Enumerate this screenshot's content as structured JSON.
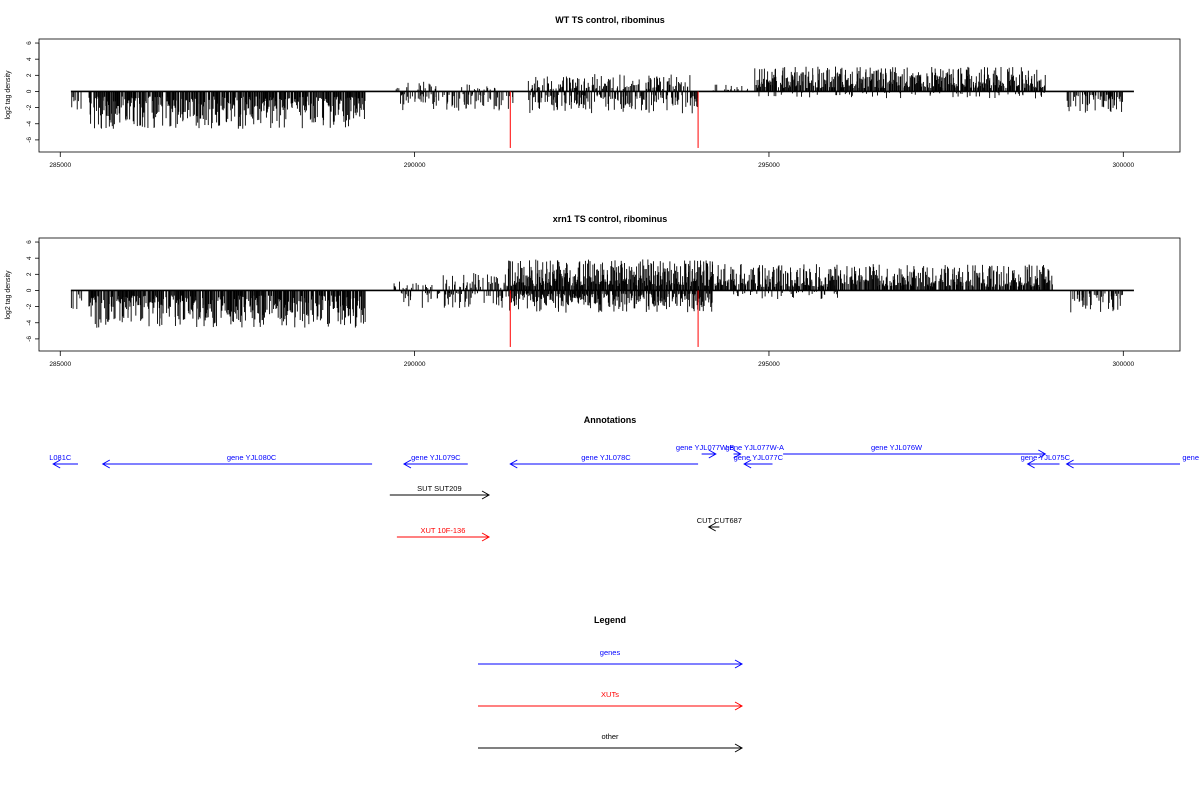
{
  "chart_data": [
    {
      "type": "bar",
      "title": "WT TS control, ribominus",
      "ylabel": "log2 tag density",
      "xlabel": "",
      "xlim": [
        284700,
        300800
      ],
      "ylim": [
        -7.5,
        6.5
      ],
      "x_ticks": [
        285000,
        290000,
        295000,
        300000
      ],
      "x_tick_labels": [
        "285000",
        "290000",
        "295000",
        "300000"
      ],
      "y_ticks": [
        -6,
        -4,
        -2,
        0,
        2,
        4,
        6
      ],
      "y_tick_labels": [
        "-6",
        "-4",
        "-2",
        "0",
        "2",
        "4",
        "6"
      ],
      "baseline_range": [
        285150,
        300150
      ],
      "red_markers": [
        {
          "x": 291350,
          "y": -7.0
        },
        {
          "x": 294000,
          "y": -7.0
        }
      ],
      "segments": [
        {
          "from": 285150,
          "to": 285300,
          "y": -2.5,
          "density": 0.3
        },
        {
          "from": 285400,
          "to": 289300,
          "y": -4.2,
          "density": 0.85
        },
        {
          "from": 289700,
          "to": 290300,
          "y": 1.2,
          "density": 0.25
        },
        {
          "from": 289800,
          "to": 291400,
          "y": -2.2,
          "density": 0.45
        },
        {
          "from": 290600,
          "to": 291200,
          "y": 0.8,
          "density": 0.2
        },
        {
          "from": 291600,
          "to": 293900,
          "y": 2.0,
          "density": 0.5
        },
        {
          "from": 291600,
          "to": 294000,
          "y": -2.5,
          "density": 0.55
        },
        {
          "from": 294200,
          "to": 294700,
          "y": 0.8,
          "density": 0.2
        },
        {
          "from": 294800,
          "to": 298900,
          "y": 2.8,
          "density": 0.85
        },
        {
          "from": 294800,
          "to": 298900,
          "y": -0.8,
          "density": 0.15
        },
        {
          "from": 299200,
          "to": 300000,
          "y": -2.5,
          "density": 0.45
        }
      ]
    },
    {
      "type": "bar",
      "title": "xrn1 TS control, ribominus",
      "ylabel": "log2 tag density",
      "xlabel": "",
      "xlim": [
        284700,
        300800
      ],
      "ylim": [
        -7.5,
        6.5
      ],
      "x_ticks": [
        285000,
        290000,
        295000,
        300000
      ],
      "x_tick_labels": [
        "285000",
        "290000",
        "295000",
        "300000"
      ],
      "y_ticks": [
        -6,
        -4,
        -2,
        0,
        2,
        4,
        6
      ],
      "y_tick_labels": [
        "-6",
        "-4",
        "-2",
        "0",
        "2",
        "4",
        "6"
      ],
      "baseline_range": [
        285150,
        300150
      ],
      "red_markers": [
        {
          "x": 291350,
          "y": -7.0
        },
        {
          "x": 294000,
          "y": -7.0
        }
      ],
      "segments": [
        {
          "from": 285150,
          "to": 285300,
          "y": -2.5,
          "density": 0.3
        },
        {
          "from": 285400,
          "to": 289300,
          "y": -4.2,
          "density": 0.85
        },
        {
          "from": 289700,
          "to": 290300,
          "y": 1.0,
          "density": 0.25
        },
        {
          "from": 289800,
          "to": 291300,
          "y": -2.0,
          "density": 0.45
        },
        {
          "from": 290400,
          "to": 291300,
          "y": 2.0,
          "density": 0.35
        },
        {
          "from": 291300,
          "to": 294200,
          "y": 3.5,
          "density": 0.95
        },
        {
          "from": 291300,
          "to": 294200,
          "y": -2.5,
          "density": 0.85
        },
        {
          "from": 294200,
          "to": 299000,
          "y": 3.0,
          "density": 0.85
        },
        {
          "from": 294500,
          "to": 296000,
          "y": -1.0,
          "density": 0.2
        },
        {
          "from": 299200,
          "to": 300000,
          "y": -2.5,
          "density": 0.45
        }
      ]
    }
  ],
  "annotations_panel": {
    "title": "Annotations",
    "xlim": [
      284700,
      300800
    ],
    "rows": [
      {
        "label": "L081C",
        "from": 285250,
        "to": 284900,
        "row": 0,
        "color": "#0000ff",
        "label_x": 285000,
        "label_side": "above"
      },
      {
        "label": "gene YJL080C",
        "from": 289400,
        "to": 285600,
        "row": 0,
        "color": "#0000ff",
        "label_x": 287700,
        "label_side": "above"
      },
      {
        "label": "gene YJL079C",
        "from": 290750,
        "to": 289850,
        "row": 0,
        "color": "#0000ff",
        "label_x": 290300,
        "label_side": "above"
      },
      {
        "label": "gene YJL078C",
        "from": 294000,
        "to": 291350,
        "row": 0,
        "color": "#0000ff",
        "label_x": 292700,
        "label_side": "above"
      },
      {
        "label": "gene YJL077W-B",
        "from": 294050,
        "to": 294250,
        "row": -1,
        "color": "#0000ff",
        "label_x": 294100,
        "label_side": "above"
      },
      {
        "label": "gene YJL077W-A",
        "from": 294500,
        "to": 294600,
        "row": -1,
        "color": "#0000ff",
        "label_x": 294800,
        "label_side": "above"
      },
      {
        "label": "gene YJL077C",
        "from": 295050,
        "to": 294650,
        "row": 0,
        "color": "#0000ff",
        "label_x": 294850,
        "label_side": "above"
      },
      {
        "label": "gene YJL076W",
        "from": 295200,
        "to": 298900,
        "row": -1,
        "color": "#0000ff",
        "label_x": 296800,
        "label_side": "above"
      },
      {
        "label": "gene YJL075C",
        "from": 299100,
        "to": 298650,
        "row": 0,
        "color": "#0000ff",
        "label_x": 298900,
        "label_side": "above"
      },
      {
        "label": "gene",
        "from": 300800,
        "to": 299200,
        "row": 0,
        "color": "#0000ff",
        "label_x": 300770,
        "label_side": "above"
      },
      {
        "label": "SUT SUT209",
        "from": 289650,
        "to": 291050,
        "row": 1,
        "color": "#000000",
        "label_x": 290350,
        "label_side": "above"
      },
      {
        "label": "CUT CUT687",
        "from": 294300,
        "to": 294150,
        "row": 2,
        "color": "#000000",
        "label_x": 294300,
        "label_side": "above"
      },
      {
        "label": "XUT 10F-136",
        "from": 289750,
        "to": 291050,
        "row": 3,
        "color": "#ff0000",
        "label_x": 290400,
        "label_side": "above"
      }
    ]
  },
  "legend_panel": {
    "title": "Legend",
    "items": [
      {
        "label": "genes",
        "color": "#0000ff"
      },
      {
        "label": "XUTs",
        "color": "#ff0000"
      },
      {
        "label": "other",
        "color": "#000000"
      }
    ]
  }
}
